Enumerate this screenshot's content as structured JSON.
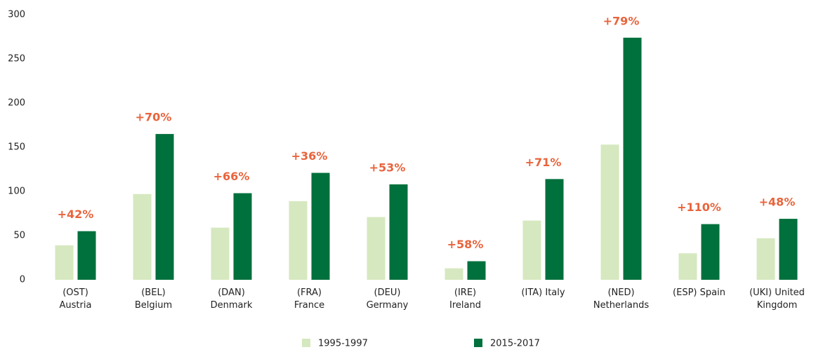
{
  "chart_data": {
    "type": "bar",
    "categories": [
      [
        "(OST)",
        "Austria"
      ],
      [
        "(BEL)",
        "Belgium"
      ],
      [
        "(DAN)",
        "Denmark"
      ],
      [
        "(FRA)",
        "France"
      ],
      [
        "(DEU)",
        "Germany"
      ],
      [
        "(IRE)",
        "Ireland"
      ],
      [
        "(ITA) Italy"
      ],
      [
        "(NED)",
        "Netherlands"
      ],
      [
        "(ESP) Spain"
      ],
      [
        "(UKI) United",
        "Kingdom"
      ]
    ],
    "series": [
      {
        "name": "1995-1997",
        "color": "#d6e8bf",
        "values": [
          39,
          97,
          59,
          89,
          71,
          13,
          67,
          153,
          30,
          47
        ]
      },
      {
        "name": "2015-2017",
        "color": "#00703c",
        "values": [
          55,
          165,
          98,
          121,
          108,
          21,
          114,
          274,
          63,
          69
        ]
      }
    ],
    "annotations": [
      "+42%",
      "+70%",
      "+66%",
      "+36%",
      "+53%",
      "+58%",
      "+71%",
      "+79%",
      "+110%",
      "+48%"
    ],
    "annotation_color": "#e8643c",
    "ylim": [
      0,
      300
    ],
    "yticks": [
      0,
      50,
      100,
      150,
      200,
      250,
      300
    ],
    "grid": false,
    "legend": "bottom"
  }
}
